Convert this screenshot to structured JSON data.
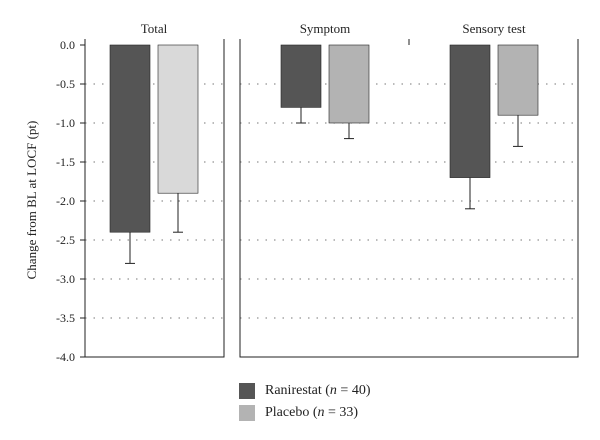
{
  "chart_data": {
    "type": "bar",
    "ylabel": "Change from BL at LOCF (pt)",
    "ylim": [
      -4.0,
      0.0
    ],
    "yticks": [
      "0.0",
      "-0.5",
      "-1.0",
      "-1.5",
      "-2.0",
      "-2.5",
      "-3.0",
      "-3.5",
      "-4.0"
    ],
    "grid": "horizontal-dotted",
    "legend_placement": "bottom",
    "categories": [
      "Total",
      "Symptom",
      "Sensory test"
    ],
    "series": [
      {
        "name": "Ranirestat",
        "name_prefix": "Ranirestat (",
        "n_label": "n",
        "n_value": " = 40)",
        "color": "#555555",
        "values": [
          -2.4,
          -0.8,
          -1.7
        ],
        "error": [
          0.4,
          0.2,
          0.4
        ]
      },
      {
        "name": "Placebo",
        "name_prefix": "Placebo (",
        "n_label": "n",
        "n_value": " = 33)",
        "colors": [
          "#d9d9d9",
          "#b3b3b3",
          "#b3b3b3"
        ],
        "values": [
          -1.9,
          -1.0,
          -0.9
        ],
        "error": [
          0.5,
          0.2,
          0.4
        ]
      }
    ]
  }
}
